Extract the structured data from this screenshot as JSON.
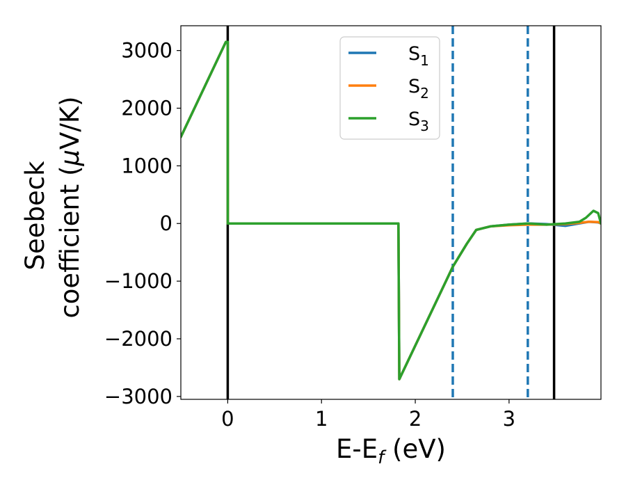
{
  "chart_data": {
    "type": "line",
    "xlabel": {
      "main": "E-E",
      "sub": "f",
      "unit": " (eV)"
    },
    "ylabel": {
      "line1": "Seebeck",
      "line2": "coefficient  (",
      "mu": "μ",
      "line2_end": "V/K)"
    },
    "xlim": [
      -0.5,
      3.98
    ],
    "ylim": [
      -3050,
      3430
    ],
    "xticks": [
      0,
      1,
      2,
      3
    ],
    "xtick_labels": [
      "0",
      "1",
      "2",
      "3"
    ],
    "yticks": [
      -3000,
      -2000,
      -1000,
      0,
      1000,
      2000,
      3000
    ],
    "ytick_labels": [
      "−3000",
      "−2000",
      "−1000",
      "0",
      "1000",
      "2000",
      "3000"
    ],
    "legend": {
      "placement": "upper-center",
      "entries": [
        {
          "base": "S",
          "sub": "1",
          "color": "#1f77b4"
        },
        {
          "base": "S",
          "sub": "2",
          "color": "#ff7f0e"
        },
        {
          "base": "S",
          "sub": "3",
          "color": "#2ca02c"
        }
      ]
    },
    "vlines": [
      {
        "x": 0.0,
        "color": "#000000",
        "style": "solid"
      },
      {
        "x": 2.4,
        "color": "#1f77b4",
        "style": "dashed"
      },
      {
        "x": 3.2,
        "color": "#1f77b4",
        "style": "dashed"
      },
      {
        "x": 3.48,
        "color": "#000000",
        "style": "solid"
      }
    ],
    "series": [
      {
        "name": "S1",
        "color": "#1f77b4",
        "x": [
          -0.5,
          -0.02,
          0.0,
          0.001,
          1.82,
          1.82,
          1.83,
          2.4,
          2.55,
          2.65,
          2.8,
          3.0,
          3.2,
          3.4,
          3.6,
          3.75,
          3.85,
          3.95,
          3.98
        ],
        "y": [
          1500,
          3150,
          3150,
          0,
          0,
          0,
          -2700,
          -750,
          -350,
          -110,
          -50,
          -20,
          0,
          -10,
          -40,
          0,
          30,
          20,
          0
        ]
      },
      {
        "name": "S2",
        "color": "#ff7f0e",
        "x": [
          -0.5,
          -0.02,
          0.0,
          0.001,
          1.82,
          1.82,
          1.83,
          2.4,
          2.55,
          2.65,
          2.8,
          3.0,
          3.2,
          3.4,
          3.6,
          3.75,
          3.85,
          3.95,
          3.98
        ],
        "y": [
          1500,
          3150,
          3150,
          0,
          0,
          0,
          -2700,
          -750,
          -350,
          -110,
          -50,
          -30,
          -20,
          -20,
          -10,
          10,
          30,
          25,
          0
        ]
      },
      {
        "name": "S3",
        "color": "#2ca02c",
        "x": [
          -0.5,
          -0.02,
          0.0,
          0.001,
          1.82,
          1.82,
          1.83,
          2.4,
          2.55,
          2.65,
          2.8,
          3.0,
          3.2,
          3.4,
          3.6,
          3.75,
          3.82,
          3.9,
          3.95,
          3.98
        ],
        "y": [
          1500,
          3150,
          3150,
          0,
          0,
          0,
          -2700,
          -750,
          -350,
          -110,
          -50,
          -20,
          0,
          -20,
          0,
          30,
          100,
          220,
          180,
          0
        ]
      }
    ]
  }
}
